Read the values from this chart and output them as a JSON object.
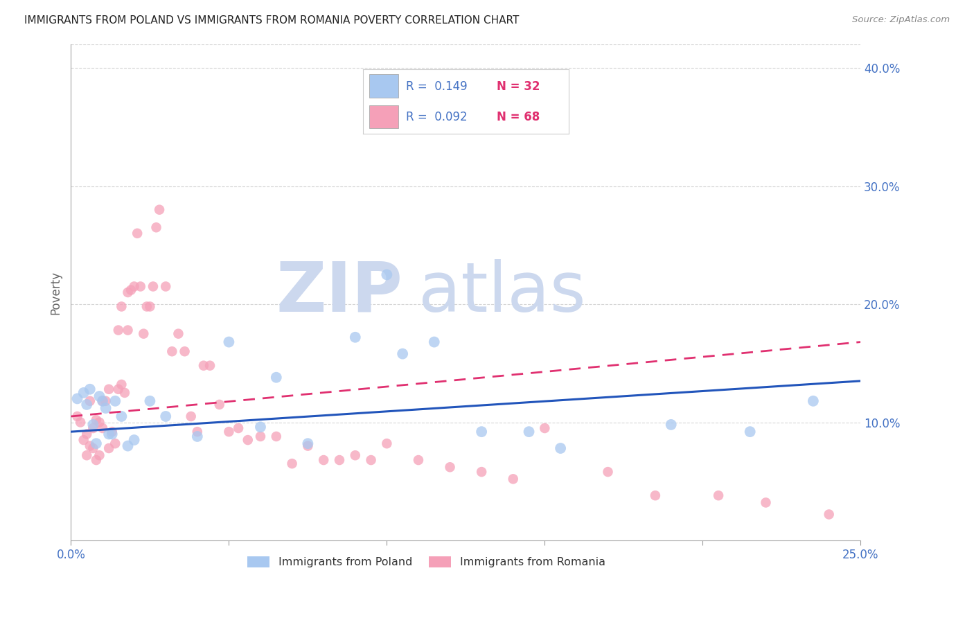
{
  "title": "IMMIGRANTS FROM POLAND VS IMMIGRANTS FROM ROMANIA POVERTY CORRELATION CHART",
  "source": "Source: ZipAtlas.com",
  "ylabel": "Poverty",
  "xlim": [
    0.0,
    0.25
  ],
  "ylim": [
    0.0,
    0.42
  ],
  "right_yticks": [
    0.1,
    0.2,
    0.3,
    0.4
  ],
  "right_ytick_labels": [
    "10.0%",
    "20.0%",
    "30.0%",
    "40.0%"
  ],
  "xtick_positions": [
    0.0,
    0.05,
    0.1,
    0.15,
    0.2,
    0.25
  ],
  "xtick_labels": [
    "0.0%",
    "",
    "",
    "",
    "",
    "25.0%"
  ],
  "legend_r_poland": "0.149",
  "legend_n_poland": "32",
  "legend_r_romania": "0.092",
  "legend_n_romania": "68",
  "poland_color": "#a8c8f0",
  "romania_color": "#f5a0b8",
  "poland_line_color": "#2255bb",
  "romania_line_color": "#e03070",
  "background_color": "#ffffff",
  "grid_color": "#cccccc",
  "watermark_color": "#ccd8ee",
  "title_color": "#222222",
  "axis_label_color": "#666666",
  "tick_color": "#4472c4",
  "legend_text_color_r": "#4472c4",
  "legend_text_color_n": "#e03070",
  "poland_scatter_x": [
    0.002,
    0.004,
    0.005,
    0.006,
    0.007,
    0.008,
    0.009,
    0.01,
    0.011,
    0.012,
    0.013,
    0.014,
    0.016,
    0.018,
    0.02,
    0.025,
    0.03,
    0.04,
    0.05,
    0.06,
    0.065,
    0.075,
    0.09,
    0.1,
    0.105,
    0.115,
    0.13,
    0.145,
    0.155,
    0.19,
    0.215,
    0.235
  ],
  "poland_scatter_y": [
    0.12,
    0.125,
    0.115,
    0.128,
    0.098,
    0.082,
    0.122,
    0.118,
    0.112,
    0.09,
    0.09,
    0.118,
    0.105,
    0.08,
    0.085,
    0.118,
    0.105,
    0.088,
    0.168,
    0.096,
    0.138,
    0.082,
    0.172,
    0.225,
    0.158,
    0.168,
    0.092,
    0.092,
    0.078,
    0.098,
    0.092,
    0.118
  ],
  "romania_scatter_x": [
    0.002,
    0.003,
    0.004,
    0.005,
    0.005,
    0.006,
    0.006,
    0.007,
    0.007,
    0.008,
    0.008,
    0.009,
    0.009,
    0.01,
    0.01,
    0.011,
    0.012,
    0.012,
    0.013,
    0.014,
    0.015,
    0.015,
    0.016,
    0.016,
    0.017,
    0.018,
    0.018,
    0.019,
    0.02,
    0.021,
    0.022,
    0.023,
    0.024,
    0.025,
    0.026,
    0.027,
    0.028,
    0.03,
    0.032,
    0.034,
    0.036,
    0.038,
    0.04,
    0.042,
    0.044,
    0.047,
    0.05,
    0.053,
    0.056,
    0.06,
    0.065,
    0.07,
    0.075,
    0.08,
    0.085,
    0.09,
    0.095,
    0.1,
    0.11,
    0.12,
    0.13,
    0.14,
    0.15,
    0.17,
    0.185,
    0.205,
    0.22,
    0.24
  ],
  "romania_scatter_y": [
    0.105,
    0.1,
    0.085,
    0.072,
    0.09,
    0.08,
    0.118,
    0.078,
    0.095,
    0.068,
    0.102,
    0.072,
    0.1,
    0.118,
    0.095,
    0.118,
    0.078,
    0.128,
    0.092,
    0.082,
    0.128,
    0.178,
    0.132,
    0.198,
    0.125,
    0.178,
    0.21,
    0.212,
    0.215,
    0.26,
    0.215,
    0.175,
    0.198,
    0.198,
    0.215,
    0.265,
    0.28,
    0.215,
    0.16,
    0.175,
    0.16,
    0.105,
    0.092,
    0.148,
    0.148,
    0.115,
    0.092,
    0.095,
    0.085,
    0.088,
    0.088,
    0.065,
    0.08,
    0.068,
    0.068,
    0.072,
    0.068,
    0.082,
    0.068,
    0.062,
    0.058,
    0.052,
    0.095,
    0.058,
    0.038,
    0.038,
    0.032,
    0.022
  ],
  "poland_trendline_x": [
    0.0,
    0.25
  ],
  "poland_trendline_y": [
    0.092,
    0.135
  ],
  "romania_trendline_x": [
    0.0,
    0.25
  ],
  "romania_trendline_y": [
    0.105,
    0.168
  ]
}
